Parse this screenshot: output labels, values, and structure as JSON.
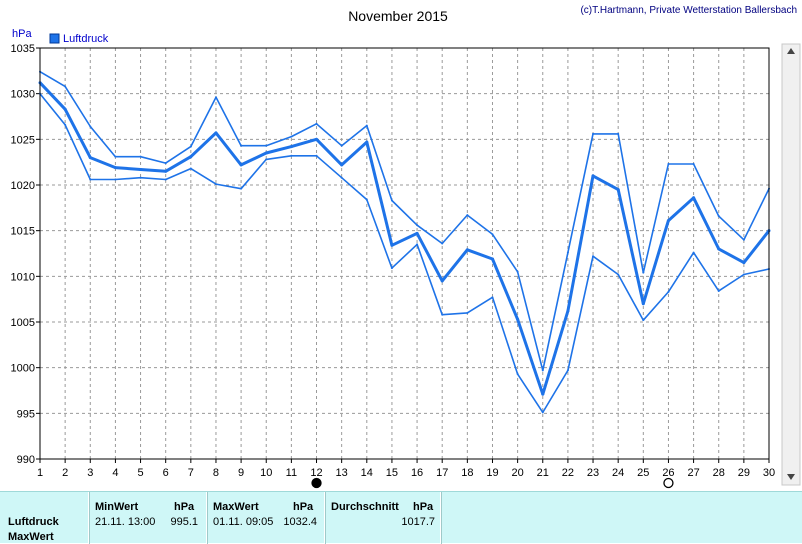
{
  "header": {
    "title": "November 2015",
    "credit": "(c)T.Hartmann, Private Wetterstation Ballersbach"
  },
  "colors": {
    "series": "#1e73e8",
    "grid": "#9a9a9a",
    "panel_bg": "#cff7f7"
  },
  "chart_data": {
    "type": "line",
    "title": "November 2015",
    "ylabel": "hPa",
    "xlabel": "",
    "ylim": [
      990,
      1035
    ],
    "yticks": [
      990,
      995,
      1000,
      1005,
      1010,
      1015,
      1020,
      1025,
      1030,
      1035
    ],
    "xlim": [
      1,
      30
    ],
    "x": [
      1,
      2,
      3,
      4,
      5,
      6,
      7,
      8,
      9,
      10,
      11,
      12,
      13,
      14,
      15,
      16,
      17,
      18,
      19,
      20,
      21,
      22,
      23,
      24,
      25,
      26,
      27,
      28,
      29,
      30
    ],
    "legend": {
      "label": "Luftdruck",
      "position": "top-left"
    },
    "grid": true,
    "moon_phase_markers": [
      {
        "day": 12,
        "phase": "new-moon"
      },
      {
        "day": 26,
        "phase": "full-moon"
      }
    ],
    "series": [
      {
        "role": "max",
        "values": [
          1032.4,
          1030.8,
          1026.4,
          1023.1,
          1023.1,
          1022.4,
          1024.2,
          1029.6,
          1024.3,
          1024.3,
          1025.3,
          1026.7,
          1024.3,
          1026.5,
          1018.3,
          1015.6,
          1013.6,
          1016.7,
          1014.6,
          1010.5,
          999.7,
          1012.6,
          1025.6,
          1025.6,
          1010.4,
          1022.3,
          1022.3,
          1016.6,
          1014.0,
          1019.6
        ]
      },
      {
        "role": "mean",
        "values": [
          1031.2,
          1028.3,
          1023.0,
          1021.9,
          1021.7,
          1021.5,
          1023.1,
          1025.7,
          1022.2,
          1023.5,
          1024.2,
          1025.0,
          1022.2,
          1024.7,
          1013.4,
          1014.7,
          1009.5,
          1012.9,
          1011.9,
          1005.3,
          997.1,
          1006.2,
          1021.0,
          1019.5,
          1007.0,
          1016.1,
          1018.6,
          1013.0,
          1011.5,
          1015.0
        ]
      },
      {
        "role": "min",
        "values": [
          1030.0,
          1026.6,
          1020.6,
          1020.6,
          1020.8,
          1020.6,
          1021.8,
          1020.1,
          1019.6,
          1022.8,
          1023.2,
          1023.2,
          1020.8,
          1018.4,
          1010.9,
          1013.5,
          1005.8,
          1006.0,
          1007.7,
          999.3,
          995.1,
          999.7,
          1012.2,
          1010.2,
          1005.2,
          1008.3,
          1012.6,
          1008.4,
          1010.2,
          1010.8
        ]
      }
    ]
  },
  "stats": {
    "row_labels": [
      "Luftdruck",
      "MaxWert"
    ],
    "min": {
      "header": "MinWert",
      "unit": "hPa",
      "datetime": "21.11.  13:00",
      "value": "995.1"
    },
    "max": {
      "header": "MaxWert",
      "unit": "hPa",
      "datetime": "01.11.  09:05",
      "value": "1032.4"
    },
    "avg": {
      "header": "Durchschnitt",
      "unit": "hPa",
      "value": "1017.7"
    }
  }
}
